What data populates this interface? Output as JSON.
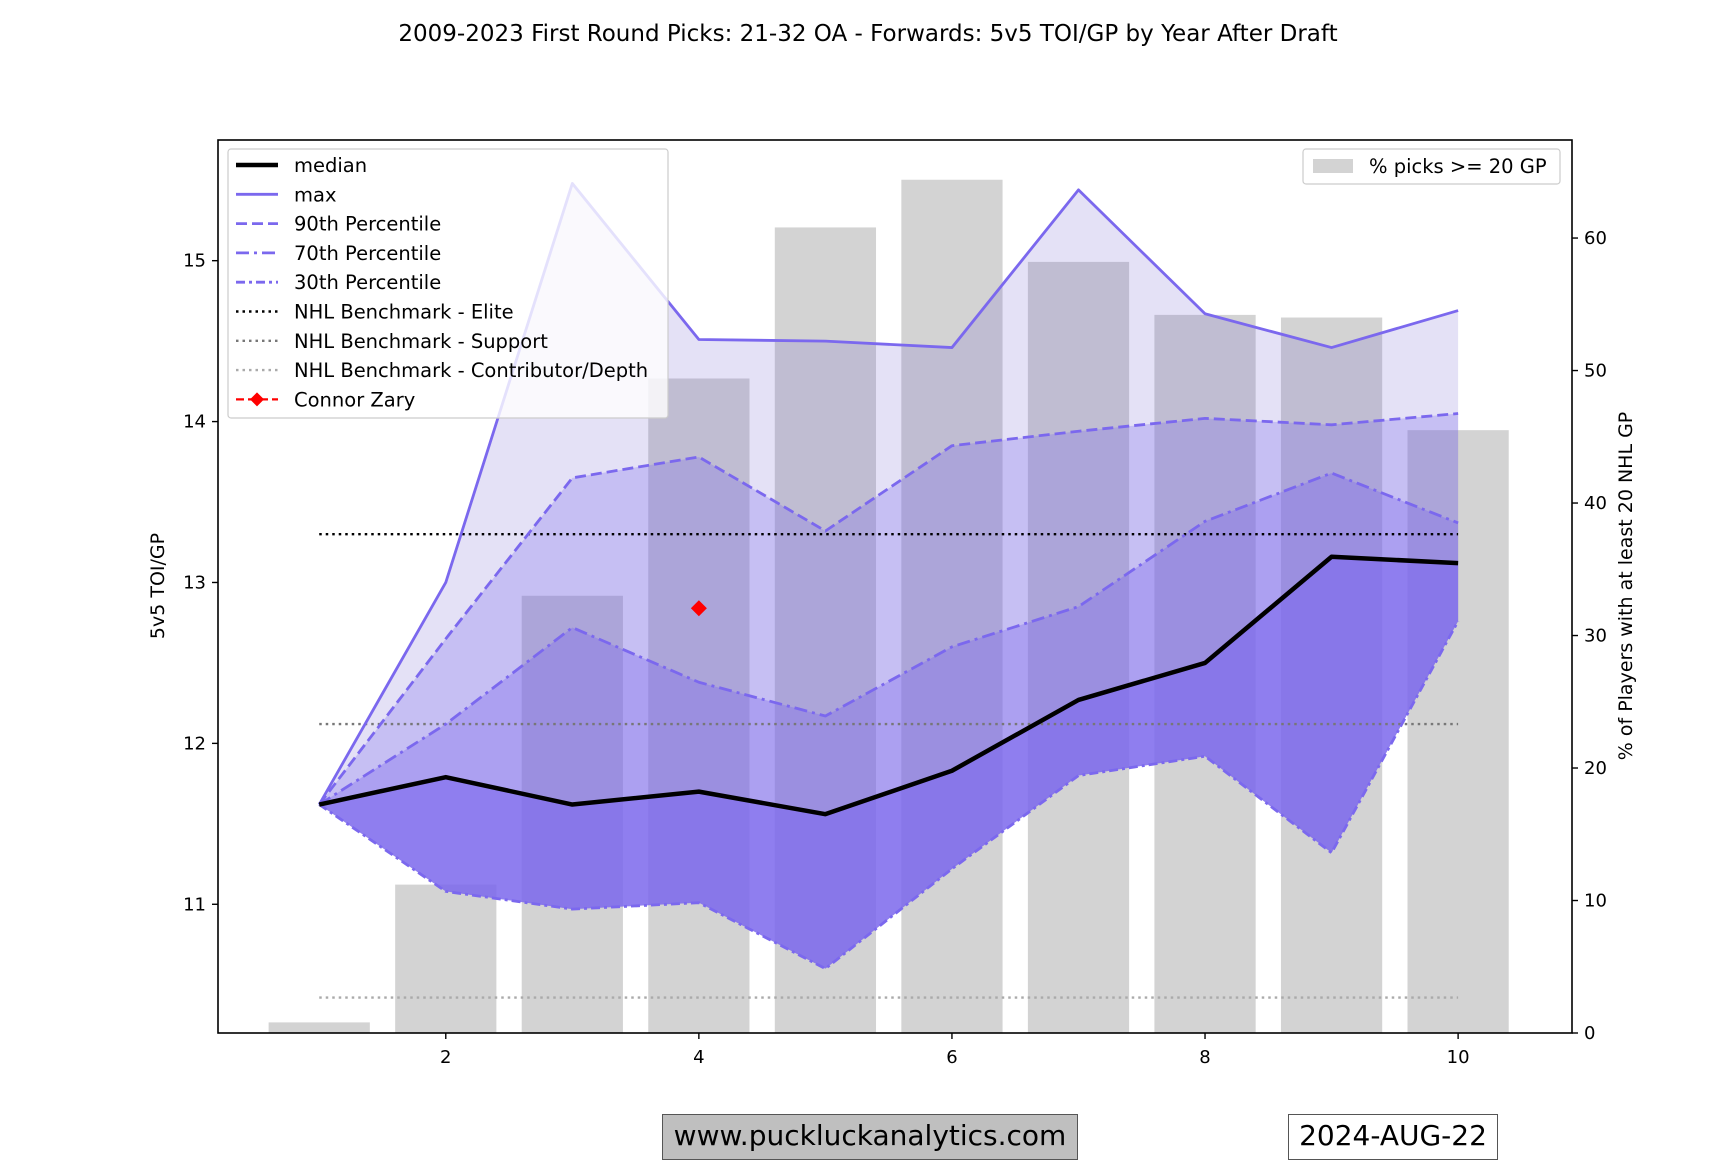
{
  "chart_data": {
    "type": "line",
    "title": "2009-2023 First Round Picks: 21-32 OA - Forwards: 5v5 TOI/GP by Year After Draft",
    "xlabel": "",
    "ylabel": "5v5 TOI/GP",
    "y2label": "% of Players with at least 20 NHL GP",
    "x": [
      1,
      2,
      3,
      4,
      5,
      6,
      7,
      8,
      9,
      10
    ],
    "xlim": [
      0.2,
      10.9
    ],
    "ylim": [
      10.2,
      15.75
    ],
    "y2lim": [
      0,
      67.4
    ],
    "xticks": [
      2,
      4,
      6,
      8,
      10
    ],
    "yticks": [
      11,
      12,
      13,
      14,
      15
    ],
    "y2ticks": [
      0,
      10,
      20,
      30,
      40,
      50,
      60
    ],
    "series": [
      {
        "name": "median",
        "style": "solid-thick",
        "color": "#000000",
        "values": [
          11.62,
          11.79,
          11.62,
          11.7,
          11.56,
          11.83,
          12.27,
          12.5,
          13.16,
          13.12
        ]
      },
      {
        "name": "max",
        "style": "solid",
        "color": "#7b68ee",
        "values": [
          11.62,
          13.0,
          15.48,
          14.51,
          14.5,
          14.46,
          15.44,
          14.67,
          14.46,
          14.69
        ]
      },
      {
        "name": "90th Percentile",
        "style": "dashed",
        "color": "#7b68ee",
        "values": [
          11.62,
          12.65,
          13.65,
          13.78,
          13.32,
          13.85,
          13.94,
          14.02,
          13.98,
          14.05
        ]
      },
      {
        "name": "70th Percentile",
        "style": "dashdot",
        "color": "#7b68ee",
        "values": [
          11.62,
          12.12,
          12.72,
          12.38,
          12.17,
          12.6,
          12.85,
          13.38,
          13.68,
          13.37
        ]
      },
      {
        "name": "30th Percentile",
        "style": "dashdot-dense",
        "color": "#7b68ee",
        "values": [
          11.62,
          11.08,
          10.97,
          11.01,
          10.6,
          11.22,
          11.8,
          11.92,
          11.32,
          12.76
        ]
      }
    ],
    "benchmarks": [
      {
        "name": "NHL Benchmark - Elite",
        "value": 13.3,
        "color": "#000000"
      },
      {
        "name": "NHL Benchmark - Support",
        "value": 12.12,
        "color": "#777777"
      },
      {
        "name": "NHL Benchmark - Contributor/Depth",
        "value": 10.42,
        "color": "#aaaaaa"
      }
    ],
    "benchmark_x": [
      1,
      10
    ],
    "player": {
      "name": "Connor Zary",
      "x": [
        4
      ],
      "y": [
        12.84
      ],
      "color": "#ff0000"
    },
    "bars": {
      "name": "% picks >= 20 GP",
      "values": [
        0.8,
        11.2,
        33.0,
        49.4,
        60.8,
        64.4,
        58.2,
        54.2,
        54.0,
        45.5
      ],
      "color": "#d3d3d3"
    },
    "bands": [
      {
        "from": "max",
        "to": "30th Percentile",
        "color": "#6a5acd",
        "opacity": 0.18
      },
      {
        "from": "90th Percentile",
        "to": "30th Percentile",
        "color": "#7b68ee",
        "opacity": 0.28
      },
      {
        "from": "70th Percentile",
        "to": "30th Percentile",
        "color": "#7b68ee",
        "opacity": 0.35
      },
      {
        "from": "median",
        "to": "30th Percentile",
        "color": "#7b68ee",
        "opacity": 0.6
      }
    ],
    "legend_left_position": "upper-left",
    "legend_right_position": "upper-right"
  },
  "footer": {
    "website": "www.puckluckanalytics.com",
    "date": "2024-AUG-22"
  }
}
